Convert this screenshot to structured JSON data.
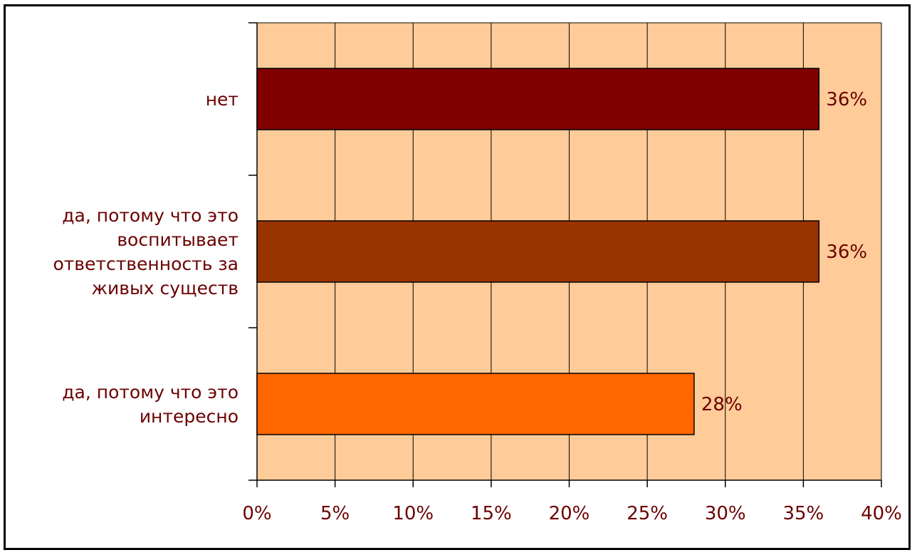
{
  "chart_data": {
    "type": "bar",
    "orientation": "horizontal",
    "categories": [
      "нет",
      "да, потому что это воспитывает ответственность за живых существ",
      "да, потому что это интересно"
    ],
    "category_label_lines": [
      [
        "нет"
      ],
      [
        "да, потому что это",
        "воспитывает",
        "ответственность за",
        "живых существ"
      ],
      [
        "да, потому что это",
        "интересно"
      ]
    ],
    "values": [
      36,
      36,
      28
    ],
    "data_labels": [
      "36%",
      "36%",
      "28%"
    ],
    "xlim": [
      0,
      40
    ],
    "xticks": [
      0,
      5,
      10,
      15,
      20,
      25,
      30,
      35,
      40
    ],
    "xtick_labels": [
      "0%",
      "5%",
      "10%",
      "15%",
      "20%",
      "25%",
      "30%",
      "35%",
      "40%"
    ],
    "grid": true,
    "title": "",
    "xlabel": "",
    "ylabel": ""
  },
  "colors": {
    "plot_background": "#ffcc99",
    "bars": [
      "#800000",
      "#993300",
      "#ff6600"
    ],
    "text": "#6b0000",
    "grid": "#000000"
  }
}
